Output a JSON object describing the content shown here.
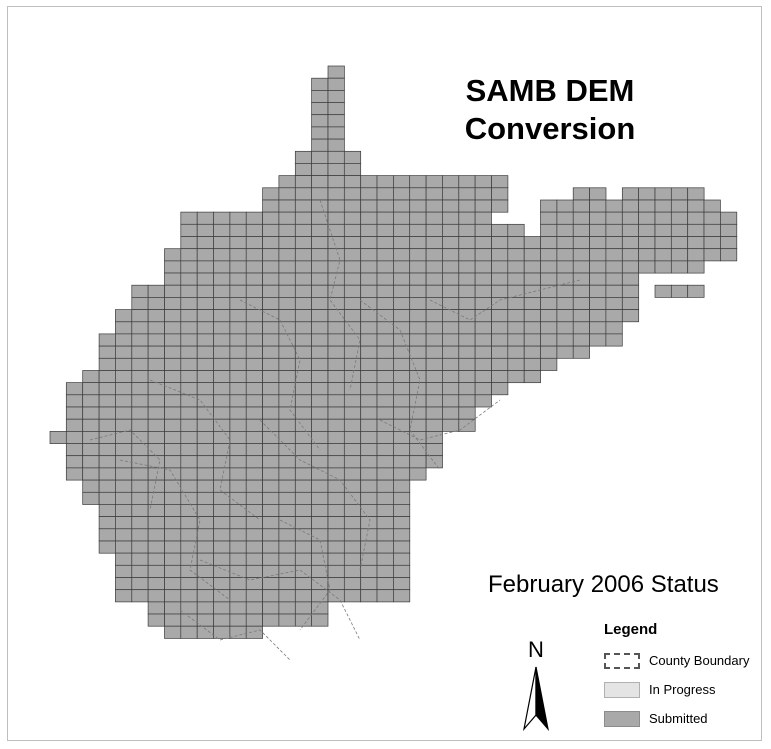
{
  "title_line1": "SAMB DEM",
  "title_line2": "Conversion",
  "status_text": "February 2006 Status",
  "north_label": "N",
  "legend": {
    "title": "Legend",
    "items": [
      {
        "label": "County Boundary",
        "swatch": "county"
      },
      {
        "label": "In Progress",
        "swatch": "progress"
      },
      {
        "label": "Submitted",
        "swatch": "submitted"
      }
    ]
  },
  "colors": {
    "submitted_fill": "#a9a9a9",
    "in_progress_fill": "#e4e4e4",
    "tile_stroke": "#3a3a3a",
    "county_line": "#7a7a7a"
  }
}
